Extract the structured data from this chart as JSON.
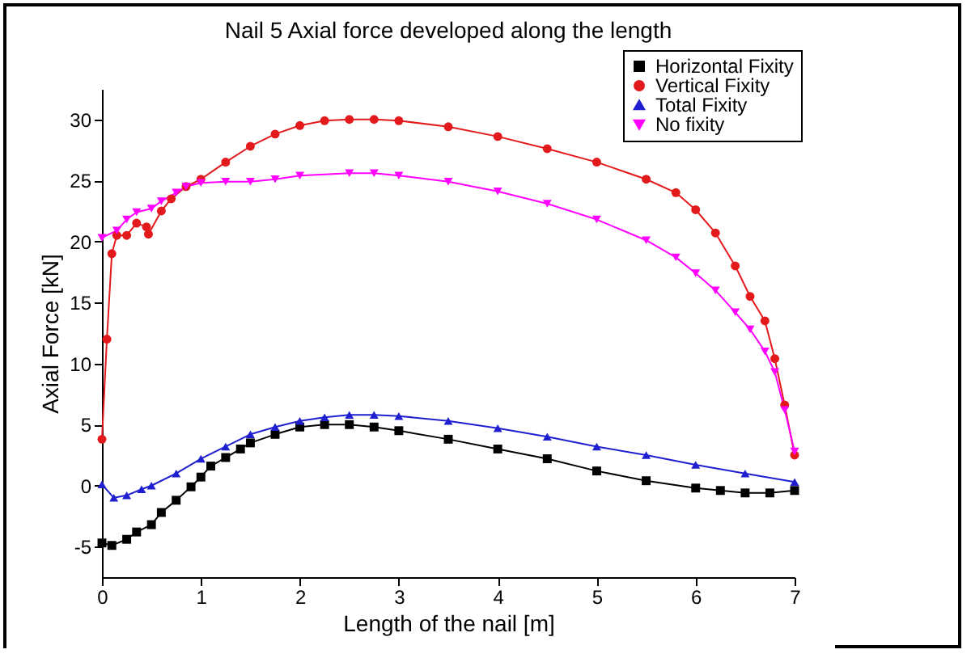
{
  "chart_data": {
    "type": "line",
    "title": "Nail 5 Axial force developed along the length",
    "xlabel": "Length of the nail [m]",
    "ylabel": "Axial Force [kN]",
    "xlim": [
      0,
      7
    ],
    "xticks": [
      0,
      1,
      2,
      3,
      4,
      5,
      6,
      7
    ],
    "ylim": [
      -7.5,
      32.5
    ],
    "yticks": [
      -5,
      0,
      5,
      10,
      15,
      20,
      25,
      30
    ],
    "grid": false,
    "legend": "top right",
    "series": [
      {
        "name": "Horizontal Fixity",
        "color": "#000000",
        "marker": "square",
        "x": [
          0,
          0.1,
          0.25,
          0.35,
          0.5,
          0.6,
          0.75,
          0.9,
          1.0,
          1.1,
          1.25,
          1.4,
          1.5,
          1.75,
          2.0,
          2.25,
          2.5,
          2.75,
          3.0,
          3.5,
          4.0,
          4.5,
          5.0,
          5.5,
          6.0,
          6.25,
          6.5,
          6.75,
          7.0
        ],
        "values": [
          -4.7,
          -4.9,
          -4.4,
          -3.8,
          -3.2,
          -2.2,
          -1.2,
          -0.1,
          0.7,
          1.6,
          2.3,
          3.0,
          3.5,
          4.2,
          4.8,
          5.0,
          5.0,
          4.8,
          4.5,
          3.8,
          3.0,
          2.2,
          1.2,
          0.4,
          -0.2,
          -0.4,
          -0.6,
          -0.6,
          -0.4
        ]
      },
      {
        "name": "Vertical Fixity",
        "color": "#e31a1c",
        "marker": "circle",
        "x": [
          0,
          0.05,
          0.1,
          0.15,
          0.25,
          0.35,
          0.45,
          0.47,
          0.6,
          0.7,
          0.85,
          1.0,
          1.25,
          1.5,
          1.75,
          2.0,
          2.25,
          2.5,
          2.75,
          3.0,
          3.5,
          4.0,
          4.5,
          5.0,
          5.5,
          5.8,
          6.0,
          6.2,
          6.4,
          6.55,
          6.7,
          6.8,
          6.9,
          7.0
        ],
        "values": [
          3.8,
          12,
          19,
          20.5,
          20.5,
          21.5,
          21.2,
          20.6,
          22.5,
          23.5,
          24.5,
          25.1,
          26.5,
          27.8,
          28.8,
          29.5,
          29.9,
          30.0,
          30.0,
          29.9,
          29.4,
          28.6,
          27.6,
          26.5,
          25.1,
          24.0,
          22.6,
          20.7,
          18.0,
          15.5,
          13.5,
          10.4,
          6.6,
          2.5
        ]
      },
      {
        "name": "Total Fixity",
        "color": "#1f1fd0",
        "marker": "triangle",
        "x": [
          0,
          0.12,
          0.25,
          0.4,
          0.5,
          0.75,
          1.0,
          1.25,
          1.5,
          1.75,
          2.0,
          2.25,
          2.5,
          2.75,
          3.0,
          3.5,
          4.0,
          4.5,
          5.0,
          5.5,
          6.0,
          6.5,
          7.0
        ],
        "values": [
          0.1,
          -1.0,
          -0.8,
          -0.3,
          0.0,
          1.0,
          2.2,
          3.2,
          4.2,
          4.8,
          5.3,
          5.6,
          5.8,
          5.8,
          5.7,
          5.3,
          4.7,
          4.0,
          3.2,
          2.5,
          1.7,
          1.0,
          0.3
        ]
      },
      {
        "name": "No fixity",
        "color": "#ff00ff",
        "marker": "triangle-down",
        "x": [
          0,
          0.15,
          0.25,
          0.35,
          0.5,
          0.6,
          0.75,
          0.85,
          1.0,
          1.25,
          1.5,
          1.75,
          2.0,
          2.5,
          2.75,
          3.0,
          3.5,
          4.0,
          4.5,
          5.0,
          5.5,
          5.8,
          6.0,
          6.2,
          6.4,
          6.55,
          6.7,
          6.8,
          6.9,
          7.0
        ],
        "values": [
          20.3,
          20.9,
          21.8,
          22.4,
          22.7,
          23.3,
          24.0,
          24.5,
          24.8,
          24.9,
          24.9,
          25.1,
          25.4,
          25.6,
          25.6,
          25.4,
          24.9,
          24.1,
          23.1,
          21.8,
          20.1,
          18.7,
          17.4,
          16.0,
          14.2,
          12.8,
          11.0,
          9.3,
          6.2,
          2.8
        ]
      }
    ]
  }
}
